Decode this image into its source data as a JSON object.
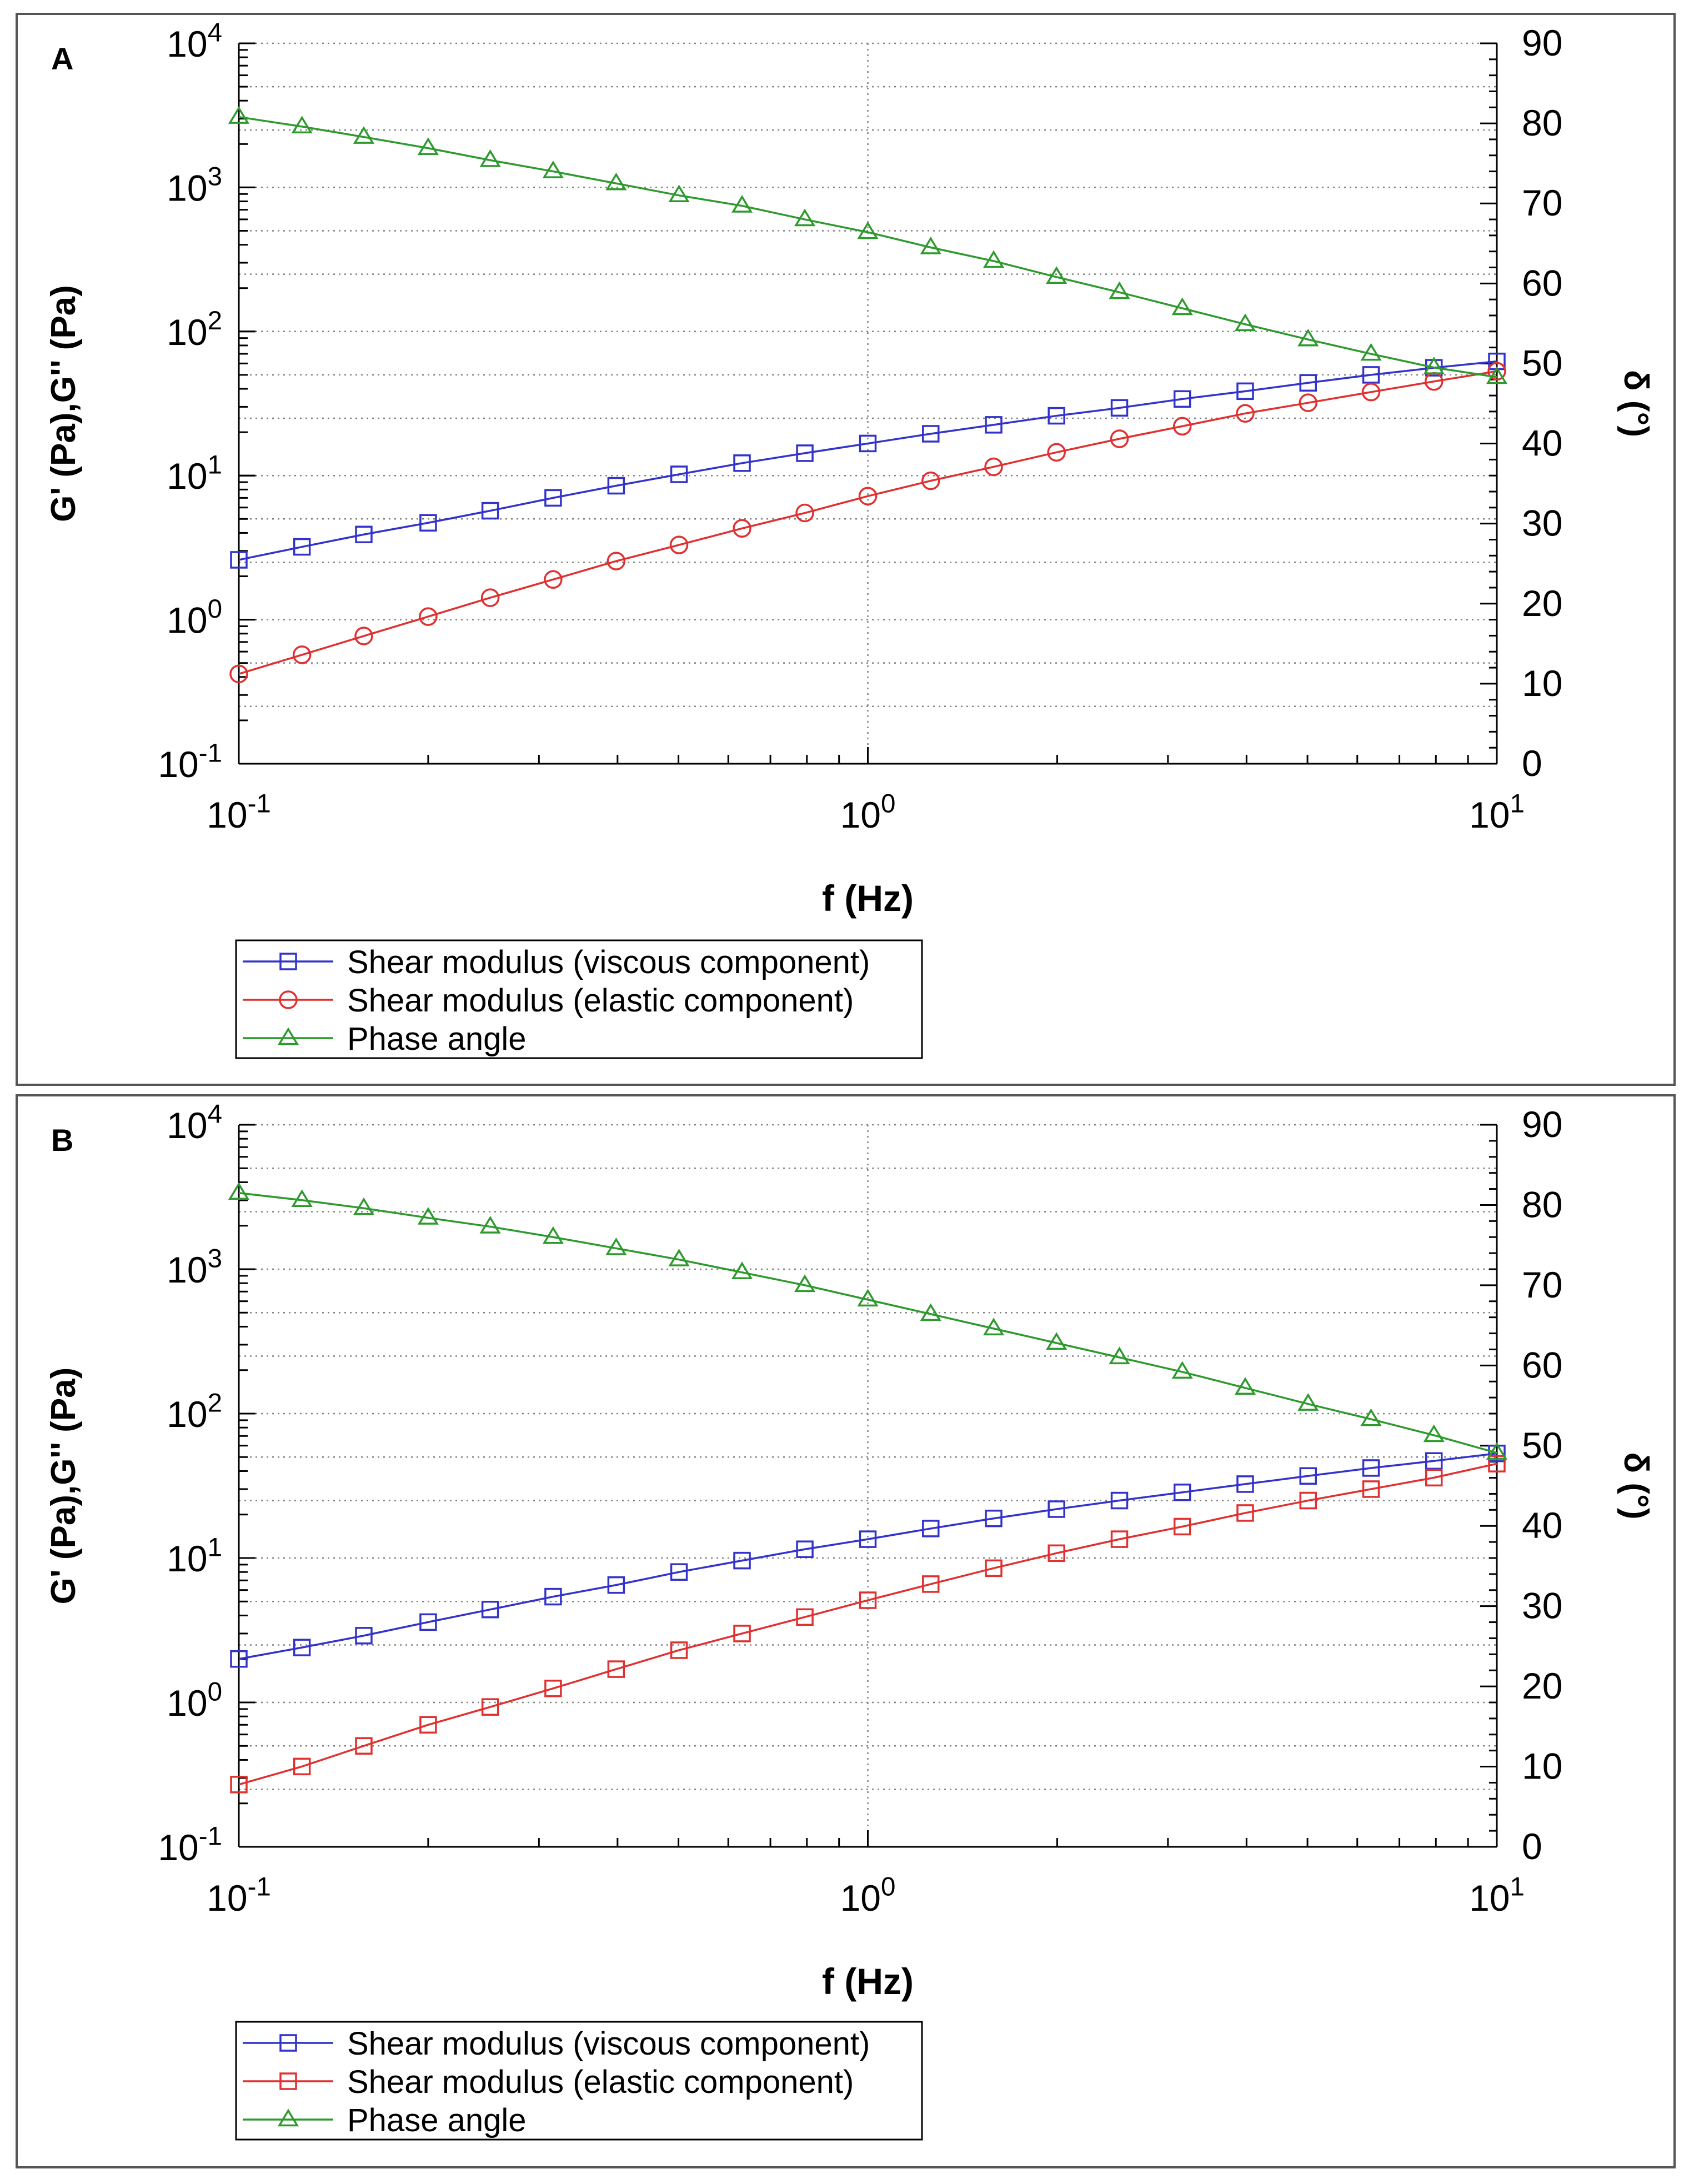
{
  "colors": {
    "viscous": "#3333cc",
    "elastic": "#e03030",
    "phase": "#2e9a2e",
    "grid": "#808080",
    "frame": "#000000"
  },
  "chart_data": [
    {
      "type": "line",
      "panel_label": "A",
      "xlabel": "f (Hz)",
      "ylabel": "G' (Pa),G'' (Pa)",
      "y2label": "δ (°)",
      "xscale": "log",
      "yscale": "log",
      "y2scale": "linear",
      "xlim": [
        0.1,
        10
      ],
      "ylim": [
        0.1,
        10000
      ],
      "y2lim": [
        0,
        90
      ],
      "x_ticks": [
        {
          "base": "10",
          "exp": "-1"
        },
        {
          "base": "10",
          "exp": "0"
        },
        {
          "base": "10",
          "exp": "1"
        }
      ],
      "y_ticks": [
        {
          "base": "10",
          "exp": "-1"
        },
        {
          "base": "10",
          "exp": "0"
        },
        {
          "base": "10",
          "exp": "1"
        },
        {
          "base": "10",
          "exp": "2"
        },
        {
          "base": "10",
          "exp": "3"
        },
        {
          "base": "10",
          "exp": "4"
        }
      ],
      "y2_ticks": [
        "0",
        "10",
        "20",
        "30",
        "40",
        "50",
        "60",
        "70",
        "80",
        "90"
      ],
      "x": [
        0.1,
        0.126,
        0.158,
        0.2,
        0.251,
        0.316,
        0.398,
        0.501,
        0.631,
        0.794,
        1.0,
        1.259,
        1.585,
        1.995,
        2.512,
        3.162,
        3.981,
        5.012,
        6.31,
        7.943,
        10.0
      ],
      "series": [
        {
          "name": "Shear modulus (viscous component)",
          "axis": "left",
          "marker": "square",
          "color_key": "viscous",
          "values": [
            2.6,
            3.2,
            3.9,
            4.7,
            5.7,
            7.0,
            8.5,
            10.2,
            12.2,
            14.3,
            16.7,
            19.5,
            22.5,
            26.0,
            29.5,
            34.0,
            38.5,
            44.0,
            50.0,
            56.0,
            62.0
          ]
        },
        {
          "name": "Shear modulus (elastic component)",
          "axis": "left",
          "marker": "circle",
          "color_key": "elastic",
          "values": [
            0.42,
            0.57,
            0.77,
            1.05,
            1.42,
            1.9,
            2.55,
            3.3,
            4.3,
            5.5,
            7.2,
            9.2,
            11.5,
            14.5,
            18.0,
            22.0,
            27.0,
            32.0,
            38.0,
            45.0,
            53.0
          ]
        },
        {
          "name": "Phase angle",
          "axis": "right",
          "marker": "triangle",
          "color_key": "phase",
          "values": [
            80.8,
            79.6,
            78.3,
            76.9,
            75.4,
            74.0,
            72.5,
            71.0,
            69.7,
            68.0,
            66.4,
            64.5,
            62.8,
            60.8,
            58.9,
            56.9,
            54.9,
            53.0,
            51.2,
            49.5,
            48.3
          ]
        }
      ],
      "legend": {
        "position": "bottom-left-outside"
      }
    },
    {
      "type": "line",
      "panel_label": "B",
      "xlabel": "f (Hz)",
      "ylabel": "G' (Pa),G'' (Pa)",
      "y2label": "δ (°)",
      "xscale": "log",
      "yscale": "log",
      "y2scale": "linear",
      "xlim": [
        0.1,
        10
      ],
      "ylim": [
        0.1,
        10000
      ],
      "y2lim": [
        0,
        90
      ],
      "x_ticks": [
        {
          "base": "10",
          "exp": "-1"
        },
        {
          "base": "10",
          "exp": "0"
        },
        {
          "base": "10",
          "exp": "1"
        }
      ],
      "y_ticks": [
        {
          "base": "10",
          "exp": "-1"
        },
        {
          "base": "10",
          "exp": "0"
        },
        {
          "base": "10",
          "exp": "1"
        },
        {
          "base": "10",
          "exp": "2"
        },
        {
          "base": "10",
          "exp": "3"
        },
        {
          "base": "10",
          "exp": "4"
        }
      ],
      "y2_ticks": [
        "0",
        "10",
        "20",
        "30",
        "40",
        "50",
        "60",
        "70",
        "80",
        "90"
      ],
      "x": [
        0.1,
        0.126,
        0.158,
        0.2,
        0.251,
        0.316,
        0.398,
        0.501,
        0.631,
        0.794,
        1.0,
        1.259,
        1.585,
        1.995,
        2.512,
        3.162,
        3.981,
        5.012,
        6.31,
        7.943,
        10.0
      ],
      "series": [
        {
          "name": "Shear modulus (viscous component)",
          "axis": "left",
          "marker": "square",
          "color_key": "viscous",
          "values": [
            2.0,
            2.4,
            2.9,
            3.6,
            4.4,
            5.4,
            6.5,
            8.0,
            9.6,
            11.5,
            13.5,
            16.0,
            18.8,
            21.8,
            25.0,
            28.5,
            32.5,
            37.0,
            42.0,
            47.0,
            53.0
          ]
        },
        {
          "name": "Shear modulus (elastic component)",
          "axis": "left",
          "marker": "square",
          "color_key": "elastic",
          "values": [
            0.27,
            0.36,
            0.5,
            0.7,
            0.93,
            1.25,
            1.7,
            2.3,
            3.0,
            3.9,
            5.1,
            6.6,
            8.5,
            10.8,
            13.5,
            16.5,
            20.5,
            25.0,
            30.0,
            36.0,
            45.0
          ]
        },
        {
          "name": "Phase angle",
          "axis": "right",
          "marker": "triangle",
          "color_key": "phase",
          "values": [
            81.5,
            80.6,
            79.6,
            78.4,
            77.3,
            76.0,
            74.6,
            73.2,
            71.6,
            70.0,
            68.2,
            66.4,
            64.6,
            62.8,
            61.0,
            59.2,
            57.2,
            55.2,
            53.3,
            51.3,
            49.1
          ]
        }
      ],
      "legend": {
        "position": "bottom-left-outside"
      }
    }
  ]
}
